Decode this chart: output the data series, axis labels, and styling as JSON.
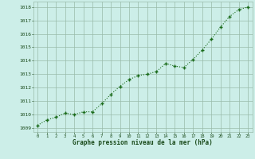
{
  "x": [
    0,
    1,
    2,
    3,
    4,
    5,
    6,
    7,
    8,
    9,
    10,
    11,
    12,
    13,
    14,
    15,
    16,
    17,
    18,
    19,
    20,
    21,
    22,
    23
  ],
  "y": [
    1009.2,
    1009.6,
    1009.8,
    1010.1,
    1010.0,
    1010.2,
    1010.2,
    1010.8,
    1011.5,
    1012.1,
    1012.6,
    1012.9,
    1013.0,
    1013.2,
    1013.8,
    1013.6,
    1013.5,
    1014.1,
    1014.8,
    1015.6,
    1016.5,
    1017.3,
    1017.8,
    1018.0
  ],
  "line_color": "#1a6b1a",
  "marker_color": "#1a6b1a",
  "bg_color": "#cceee8",
  "grid_color": "#99bbaa",
  "xlabel": "Graphe pression niveau de la mer (hPa)",
  "xlabel_color": "#1a4a1a",
  "tick_color": "#1a4a1a",
  "ylabel_ticks": [
    1009,
    1010,
    1011,
    1012,
    1013,
    1014,
    1015,
    1016,
    1017,
    1018
  ],
  "ylim": [
    1008.7,
    1018.4
  ],
  "xlim": [
    -0.5,
    23.5
  ],
  "xticks": [
    0,
    1,
    2,
    3,
    4,
    5,
    6,
    7,
    8,
    9,
    10,
    11,
    12,
    13,
    14,
    15,
    16,
    17,
    18,
    19,
    20,
    21,
    22,
    23
  ]
}
